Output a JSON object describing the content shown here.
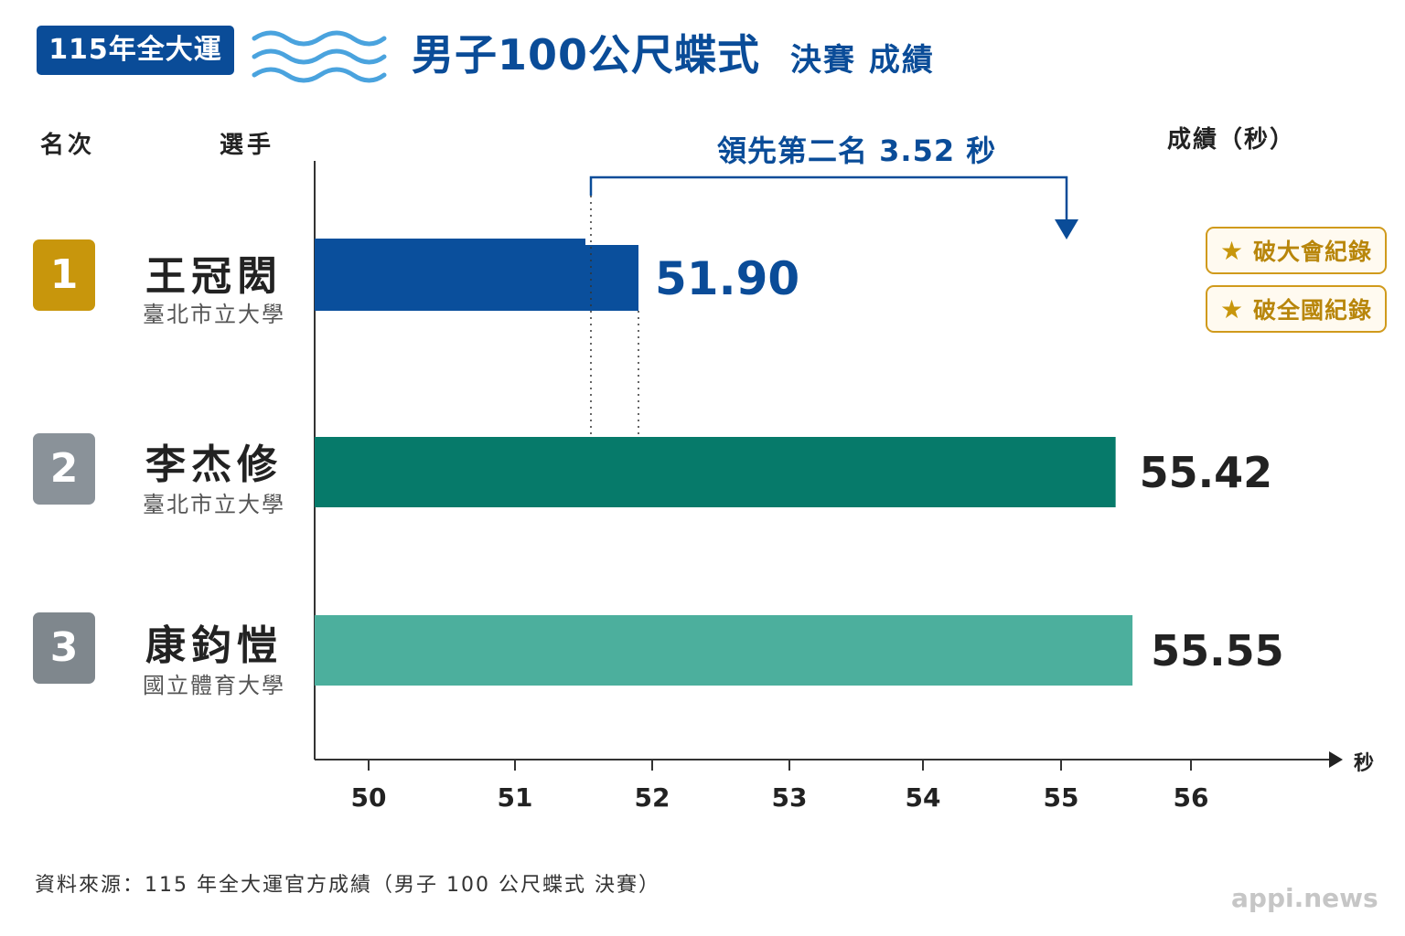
{
  "header": {
    "event": "115年全大運",
    "title": "男子100公尺蝶式",
    "subtitle": "決賽 成績"
  },
  "columns": {
    "rank": "名次",
    "athlete": "選手",
    "time": "成績（秒）"
  },
  "lead_label": "領先第二名 3.52 秒",
  "athletes": [
    {
      "rank": "1",
      "name": "王冠閎",
      "school": "臺北市立大學"
    },
    {
      "rank": "2",
      "name": "李杰修",
      "school": "臺北市立大學"
    },
    {
      "rank": "3",
      "name": "康鈞愷",
      "school": "國立體育大學"
    }
  ],
  "records": [
    {
      "label": "破大會紀錄"
    },
    {
      "label": "破全國紀錄"
    }
  ],
  "chart_data": {
    "type": "bar",
    "orientation": "horizontal",
    "categories": [
      "王冠閎",
      "李杰修",
      "康鈞愷"
    ],
    "values": [
      51.9,
      55.42,
      55.55
    ],
    "value_labels": [
      "51.90",
      "55.42",
      "55.55"
    ],
    "xlabel": "秒",
    "ticks": [
      "50",
      "51",
      "52",
      "53",
      "54",
      "55",
      "56"
    ],
    "bar_colors": [
      "#0a4f9c",
      "#067a6a",
      "#4caf9d"
    ],
    "label_colors": [
      "#0a4c98",
      "#222222",
      "#222222"
    ]
  },
  "source": "資料來源：115 年全大運官方成績（男子 100 公尺蝶式 決賽）",
  "watermark": "appi.news",
  "colors": {
    "brand": "#0a4c98",
    "gold": "#c8960c",
    "silver": "#8a9299",
    "bronze": "#7f878d"
  }
}
